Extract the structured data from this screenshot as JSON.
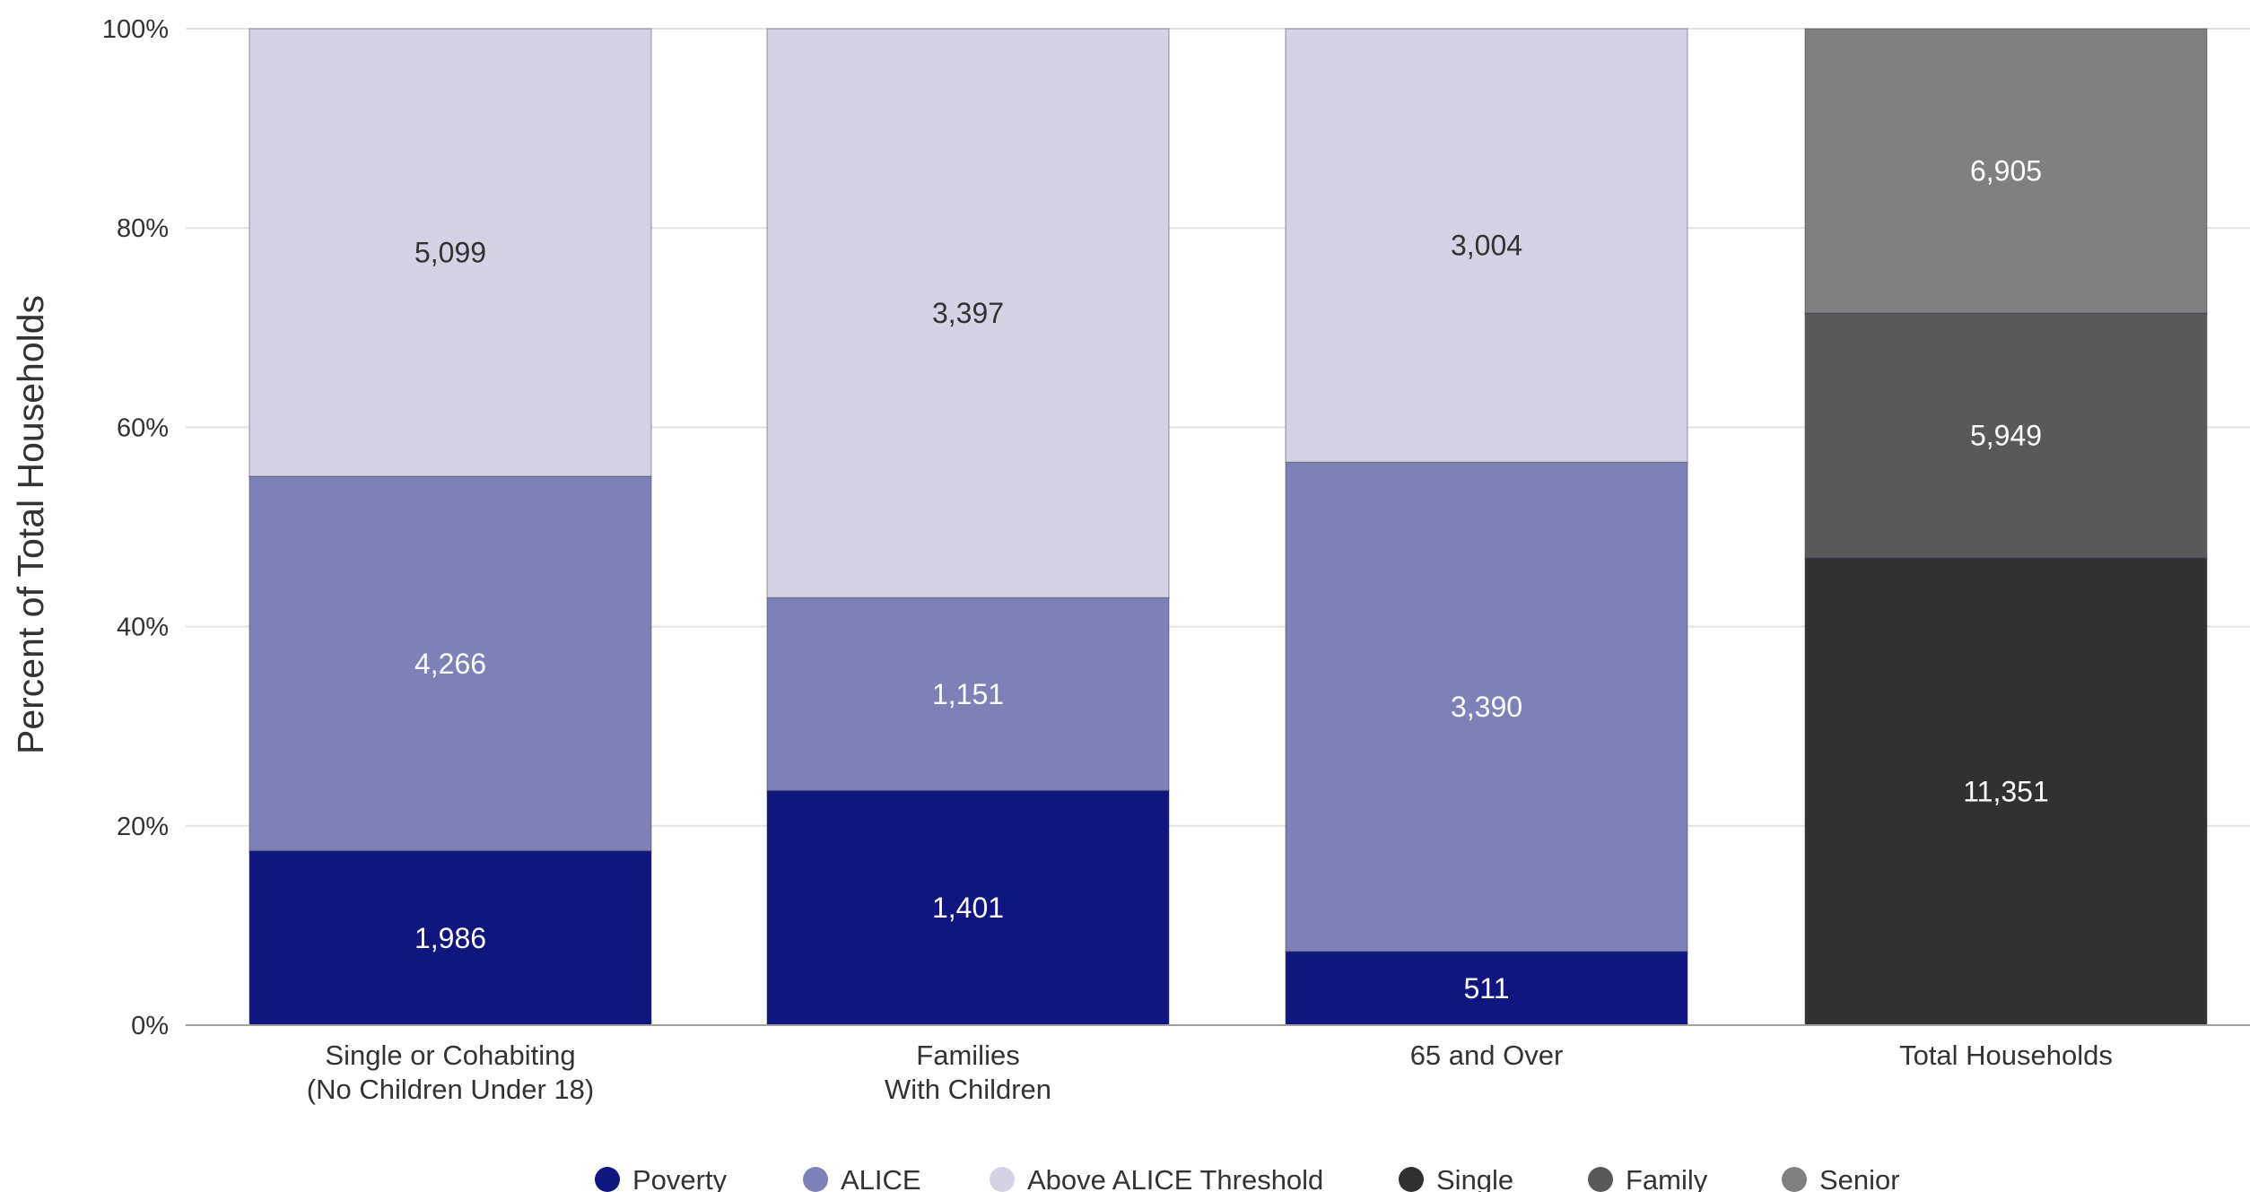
{
  "chart_data": {
    "type": "bar",
    "stacked": true,
    "normalized": true,
    "ylabel": "Percent of Total Households",
    "ylim": [
      0,
      100
    ],
    "yticks": [
      "0%",
      "20%",
      "40%",
      "60%",
      "80%",
      "100%"
    ],
    "grid": true,
    "legend_position": "bottom",
    "categories": [
      [
        "Single or Cohabiting",
        "(No Children Under 18)"
      ],
      [
        "Families",
        "With Children"
      ],
      [
        "65 and Over"
      ],
      [
        "Total Households"
      ]
    ],
    "series": [
      {
        "name": "Poverty",
        "color": "#10157f",
        "label_color": "#ffffff",
        "values": [
          1986,
          1401,
          511,
          null
        ]
      },
      {
        "name": "ALICE",
        "color": "#7d81b7",
        "label_color": "#ffffff",
        "values": [
          4266,
          1151,
          3390,
          null
        ]
      },
      {
        "name": "Above ALICE Threshold",
        "color": "#d5d2e3",
        "label_color": "#333333",
        "values": [
          5099,
          3397,
          3004,
          null
        ]
      },
      {
        "name": "Single",
        "color": "#313131",
        "label_color": "#ffffff",
        "values": [
          null,
          null,
          null,
          11351
        ]
      },
      {
        "name": "Family",
        "color": "#595959",
        "label_color": "#ffffff",
        "values": [
          null,
          null,
          null,
          5949
        ]
      },
      {
        "name": "Senior",
        "color": "#808080",
        "label_color": "#ffffff",
        "values": [
          null,
          null,
          null,
          6905
        ]
      }
    ],
    "value_labels": [
      [
        "1,986",
        "1,401",
        "511",
        ""
      ],
      [
        "4,266",
        "1,151",
        "3,390",
        ""
      ],
      [
        "5,099",
        "3,397",
        "3,004",
        ""
      ],
      [
        "",
        "",
        "",
        "11,351"
      ],
      [
        "",
        "",
        "",
        "5,949"
      ],
      [
        "",
        "",
        "",
        "6,905"
      ]
    ]
  }
}
